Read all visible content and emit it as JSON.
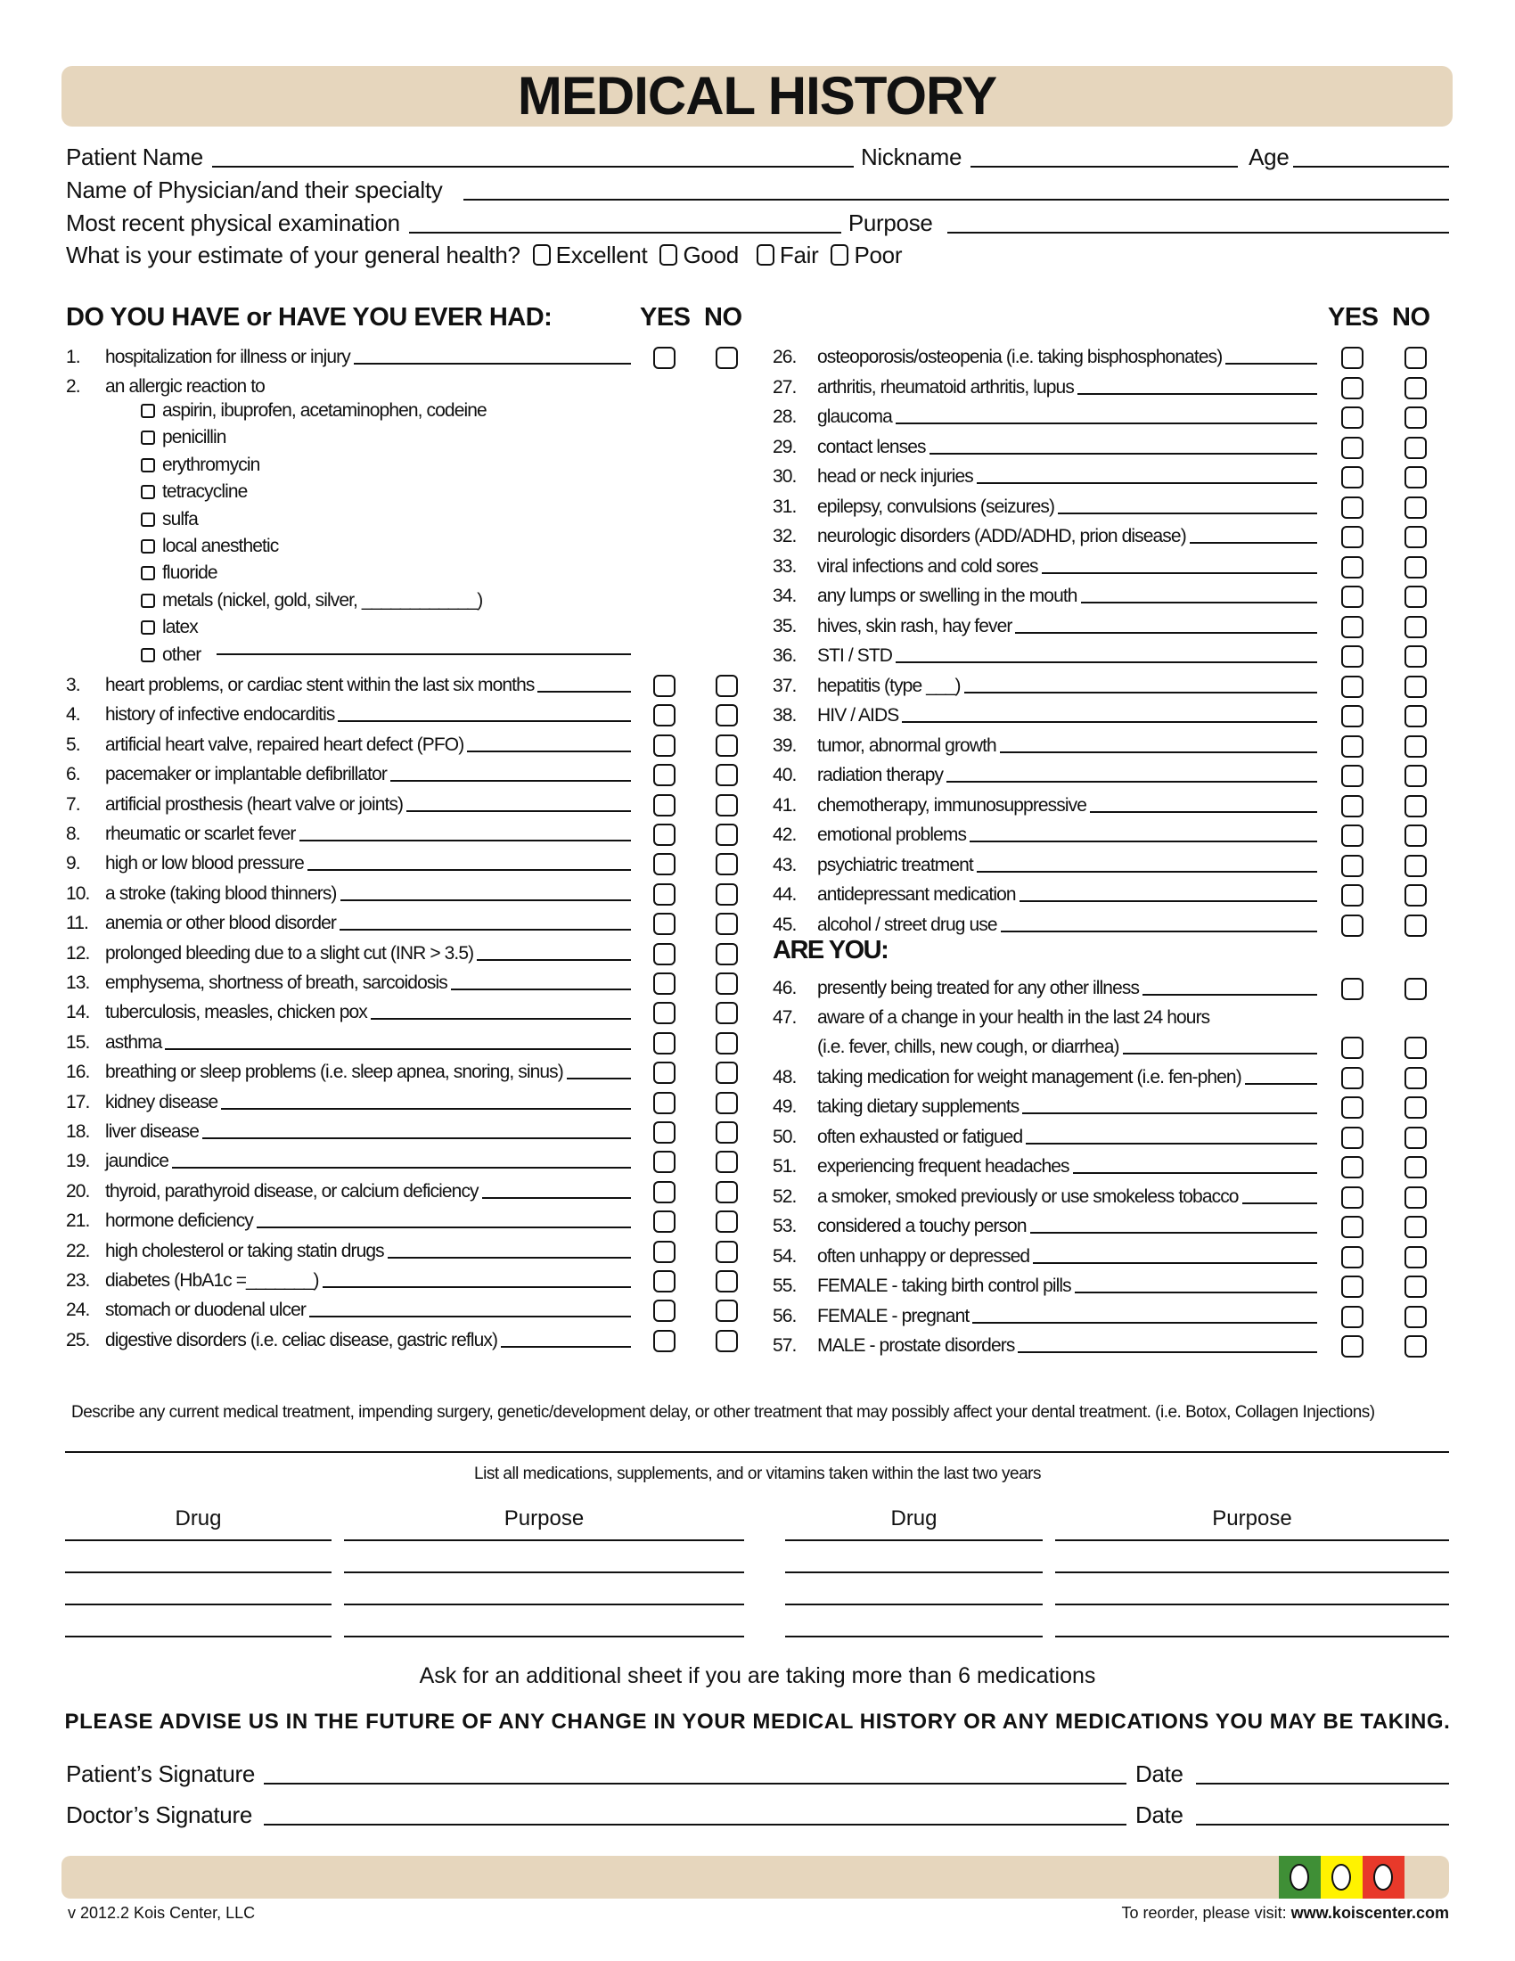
{
  "title": "MEDICAL HISTORY",
  "header": {
    "patient_name": "Patient Name",
    "nickname": "Nickname",
    "age": "Age",
    "physician": "Name of Physician/and their specialty",
    "exam": "Most recent physical examination",
    "purpose": "Purpose",
    "health_question": "What is your estimate of your general health?",
    "health_options": [
      "Excellent",
      "Good",
      "Fair",
      "Poor"
    ]
  },
  "section_title": "DO YOU HAVE or HAVE YOU EVER HAD:",
  "yes_label": "YES",
  "no_label": "NO",
  "left_items": [
    {
      "num": "1.",
      "text": "hospitalization for illness or injury",
      "boxes": true
    },
    {
      "num": "2.",
      "text": "an allergic reaction to",
      "boxes": false,
      "noline": true
    },
    {
      "num": "3.",
      "text": "heart problems, or cardiac stent within the last six months",
      "boxes": true
    },
    {
      "num": "4.",
      "text": "history of infective endocarditis",
      "boxes": true
    },
    {
      "num": "5.",
      "text": "artificial heart valve, repaired heart defect (PFO)",
      "boxes": true
    },
    {
      "num": "6.",
      "text": "pacemaker or implantable defibrillator",
      "boxes": true
    },
    {
      "num": "7.",
      "text": "artificial prosthesis (heart valve or joints)",
      "boxes": true
    },
    {
      "num": "8.",
      "text": "rheumatic or scarlet fever",
      "boxes": true
    },
    {
      "num": "9.",
      "text": "high or low blood pressure",
      "boxes": true
    },
    {
      "num": "10.",
      "text": "a stroke (taking blood thinners)",
      "boxes": true
    },
    {
      "num": "11.",
      "text": "anemia or other blood disorder",
      "boxes": true
    },
    {
      "num": "12.",
      "text": "prolonged bleeding due to a slight cut (INR > 3.5)",
      "boxes": true
    },
    {
      "num": "13.",
      "text": "emphysema, shortness of breath, sarcoidosis",
      "boxes": true
    },
    {
      "num": "14.",
      "text": "tuberculosis, measles, chicken pox",
      "boxes": true
    },
    {
      "num": "15.",
      "text": "asthma",
      "boxes": true
    },
    {
      "num": "16.",
      "text": "breathing or sleep problems (i.e. sleep apnea, snoring, sinus)",
      "boxes": true
    },
    {
      "num": "17.",
      "text": "kidney disease",
      "boxes": true
    },
    {
      "num": "18.",
      "text": "liver disease",
      "boxes": true
    },
    {
      "num": "19.",
      "text": "jaundice",
      "boxes": true
    },
    {
      "num": "20.",
      "text": "thyroid, parathyroid disease, or calcium deficiency",
      "boxes": true
    },
    {
      "num": "21.",
      "text": "hormone deficiency",
      "boxes": true
    },
    {
      "num": "22.",
      "text": "high cholesterol or taking statin drugs",
      "boxes": true
    },
    {
      "num": "23.",
      "text": "diabetes (HbA1c =_______)",
      "boxes": true
    },
    {
      "num": "24.",
      "text": "stomach or duodenal ulcer",
      "boxes": true
    },
    {
      "num": "25.",
      "text": "digestive disorders (i.e.  celiac disease, gastric reflux)",
      "boxes": true
    }
  ],
  "allergies": [
    "aspirin, ibuprofen, acetaminophen, codeine",
    "penicillin",
    "erythromycin",
    "tetracycline",
    "sulfa",
    "local anesthetic",
    "fluoride",
    "metals (nickel, gold, silver, ____________)",
    "latex",
    "other"
  ],
  "right_items": [
    {
      "num": "26.",
      "text": "osteoporosis/osteopenia  (i.e. taking bisphosphonates)"
    },
    {
      "num": "27.",
      "text": "arthritis, rheumatoid arthritis, lupus"
    },
    {
      "num": "28.",
      "text": "glaucoma"
    },
    {
      "num": "29.",
      "text": "contact lenses"
    },
    {
      "num": "30.",
      "text": "head or neck injuries"
    },
    {
      "num": "31.",
      "text": "epilepsy, convulsions (seizures)"
    },
    {
      "num": "32.",
      "text": "neurologic disorders (ADD/ADHD, prion disease)"
    },
    {
      "num": "33.",
      "text": "viral infections and cold sores"
    },
    {
      "num": "34.",
      "text": "any lumps or swelling in the mouth"
    },
    {
      "num": "35.",
      "text": "hives, skin rash, hay fever"
    },
    {
      "num": "36.",
      "text": "STI / STD"
    },
    {
      "num": "37.",
      "text": "hepatitis (type ___)"
    },
    {
      "num": "38.",
      "text": "HIV / AIDS"
    },
    {
      "num": "39.",
      "text": "tumor, abnormal growth"
    },
    {
      "num": "40.",
      "text": "radiation therapy"
    },
    {
      "num": "41.",
      "text": "chemotherapy, immunosuppressive"
    },
    {
      "num": "42.",
      "text": "emotional problems"
    },
    {
      "num": "43.",
      "text": "psychiatric treatment"
    },
    {
      "num": "44.",
      "text": "antidepressant medication"
    },
    {
      "num": "45.",
      "text": "alcohol / street drug use"
    }
  ],
  "are_you_title": "ARE YOU:",
  "are_you_items": [
    {
      "num": "46.",
      "text": "presently being treated for any other illness"
    },
    {
      "num": "47.",
      "text": "aware of a change in your health in the last 24 hours",
      "cont": "(i.e. fever, chills, new cough, or diarrhea)"
    },
    {
      "num": "48.",
      "text": "taking medication for weight management (i.e. fen-phen)"
    },
    {
      "num": "49.",
      "text": "taking dietary supplements"
    },
    {
      "num": "50.",
      "text": "often exhausted or fatigued"
    },
    {
      "num": "51.",
      "text": "experiencing frequent headaches"
    },
    {
      "num": "52.",
      "text": "a smoker, smoked previously or use smokeless tobacco"
    },
    {
      "num": "53.",
      "text": "considered a touchy person"
    },
    {
      "num": "54.",
      "text": "often unhappy or depressed"
    },
    {
      "num": "55.",
      "text": "FEMALE - taking birth control pills"
    },
    {
      "num": "56.",
      "text": "FEMALE - pregnant"
    },
    {
      "num": "57.",
      "text": "MALE - prostate disorders"
    }
  ],
  "describe_text": "Describe any current medical treatment, impending surgery, genetic/development delay, or other treatment that may possibly affect your dental treatment. (i.e. Botox, Collagen Injections)",
  "medications_title": "List all medications, supplements, and or vitamins taken within the last two years",
  "med_headers": [
    "Drug",
    "Purpose",
    "Drug",
    "Purpose"
  ],
  "additional_sheet": "Ask for an additional sheet if you are taking more than 6 medications",
  "advise": "PLEASE ADVISE US IN THE FUTURE OF ANY CHANGE IN YOUR MEDICAL HISTORY OR ANY MEDICATIONS YOU MAY BE TAKING.",
  "signatures": {
    "patient": "Patient’s Signature",
    "doctor": "Doctor’s Signature",
    "date": "Date"
  },
  "traffic_colors": [
    "#3f8f36",
    "#fff200",
    "#e8392a"
  ],
  "footer": {
    "version": "v 2012.2   Kois Center, LLC",
    "reorder": "To reorder, please visit:",
    "website": "www.koiscenter.com"
  }
}
